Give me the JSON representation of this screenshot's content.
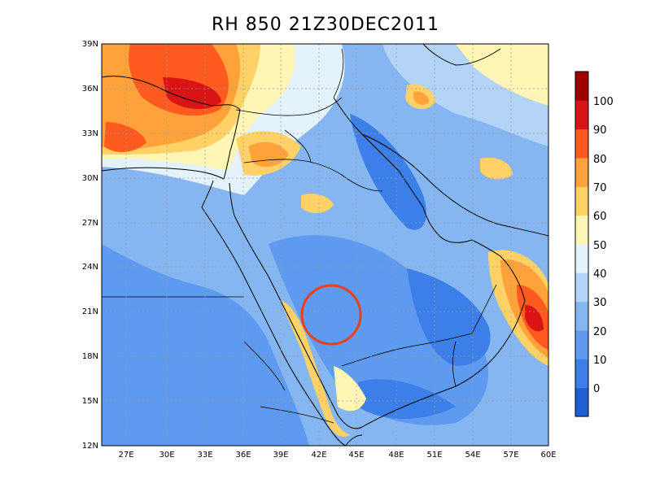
{
  "title": "RH 850  21Z30DEC2011",
  "map": {
    "variable": "relative humidity",
    "level": "850",
    "lat_range": [
      12,
      39
    ],
    "lon_range": [
      24.5,
      60
    ],
    "lat_ticks": [
      "39N",
      "36N",
      "33N",
      "30N",
      "27N",
      "24N",
      "21N",
      "18N",
      "15N",
      "12N"
    ],
    "lon_ticks": [
      "27E",
      "30E",
      "33E",
      "36E",
      "39E",
      "42E",
      "45E",
      "48E",
      "51E",
      "54E",
      "57E",
      "60E"
    ],
    "grid": true,
    "highlight_circle": {
      "lon": 43.0,
      "lat": 20.5,
      "color": "#e8401c"
    }
  },
  "colorbar": {
    "labels": [
      "0",
      "10",
      "20",
      "30",
      "40",
      "50",
      "60",
      "70",
      "80",
      "90",
      "100"
    ],
    "colors": [
      "#1f5fd6",
      "#3c7fe8",
      "#5e9aef",
      "#86b6f2",
      "#b3d4f7",
      "#e4f3fb",
      "#fff5b4",
      "#ffd166",
      "#ffa23a",
      "#ff5a1f",
      "#d81414",
      "#9e0000"
    ]
  }
}
